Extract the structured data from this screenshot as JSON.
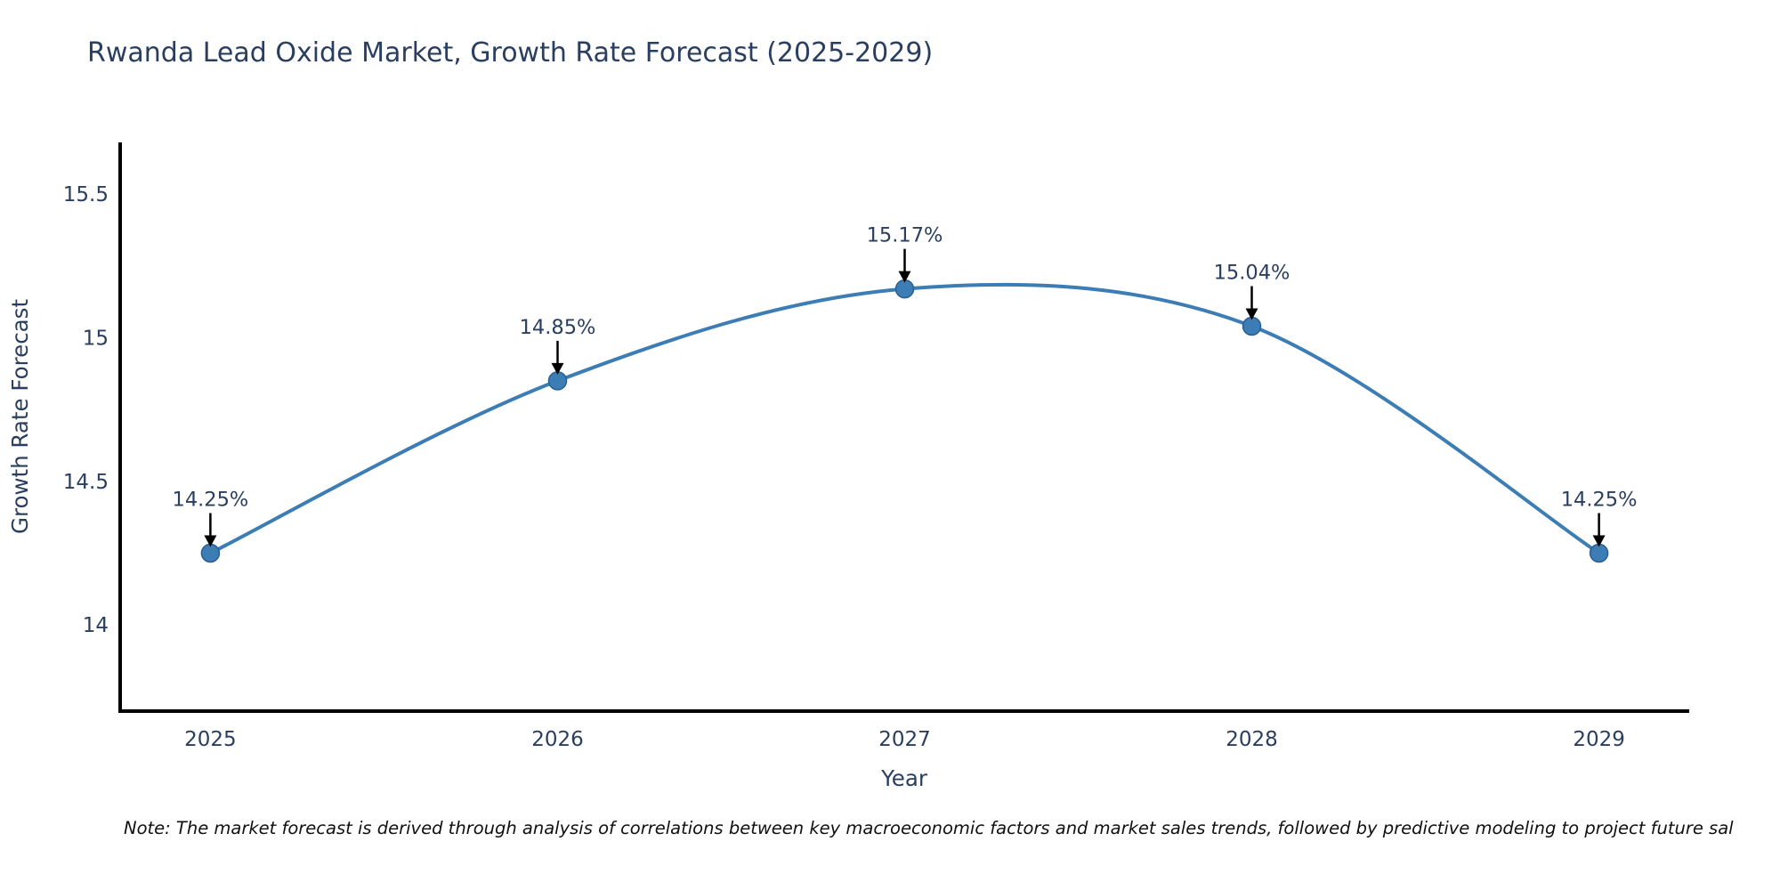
{
  "title": "Rwanda Lead Oxide Market, Growth Rate Forecast (2025-2029)",
  "note": "Note: The market forecast is derived through analysis of correlations between key macroeconomic factors and market sales trends, followed by predictive modeling to project future sal",
  "colors": {
    "line": "#3d7db6",
    "marker_fill": "#3d7db6",
    "marker_edge": "#2b5f91",
    "axis_line": "#000000",
    "chart_text": "#2a3f5f",
    "arrow": "#000000",
    "note_text": "#111111",
    "background": "#ffffff"
  },
  "chart_data": {
    "type": "line",
    "line_shape": "spline",
    "title": "Rwanda Lead Oxide Market, Growth Rate Forecast (2025-2029)",
    "x": [
      2025,
      2026,
      2027,
      2028,
      2029
    ],
    "values": [
      14.25,
      14.85,
      15.17,
      15.04,
      14.25
    ],
    "point_labels": [
      "14.25%",
      "14.85%",
      "15.17%",
      "15.04%",
      "14.25%"
    ],
    "xlabel": "Year",
    "ylabel": "Growth Rate Forecast",
    "xtick_labels": [
      "2025",
      "2026",
      "2027",
      "2028",
      "2029"
    ],
    "yticks": [
      15.5,
      15,
      14.5,
      14
    ],
    "ytick_labels": [
      "15.5",
      "15",
      "14.5",
      "14"
    ],
    "xlim": [
      2024.74,
      2029.26
    ],
    "ylim": [
      13.7,
      15.68
    ],
    "grid": false,
    "legend": "none",
    "units": "percent"
  }
}
